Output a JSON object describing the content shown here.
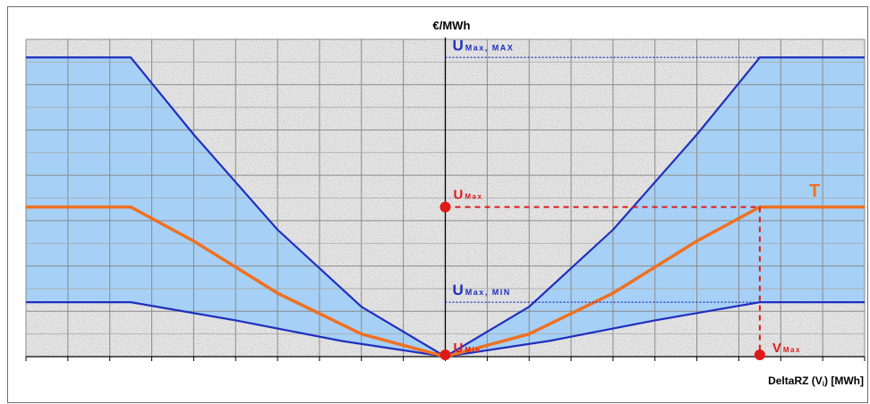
{
  "chart_data": {
    "type": "area",
    "ylabel": "€/MWh",
    "xlabel": "DeltaRZ (Vⁱ) [MWh]",
    "xlabel_parts": {
      "main": "DeltaRZ (V",
      "sub": "i",
      "tail": ") [MWh]"
    },
    "xlim": [
      -10,
      10
    ],
    "ylim": [
      0,
      7
    ],
    "x_ticks_count": 20,
    "y_ticks_count": 7,
    "series": [
      {
        "key": "upper",
        "color": "#1f2fbf",
        "points": [
          [
            -10,
            6.6
          ],
          [
            -7.5,
            6.6
          ],
          [
            -6,
            4.9
          ],
          [
            -4,
            2.8
          ],
          [
            -2,
            1.1
          ],
          [
            0,
            0
          ],
          [
            2,
            1.1
          ],
          [
            4,
            2.8
          ],
          [
            6,
            4.9
          ],
          [
            7.5,
            6.6
          ],
          [
            10,
            6.6
          ]
        ]
      },
      {
        "key": "lower",
        "color": "#1f2fbf",
        "points": [
          [
            -10,
            1.2
          ],
          [
            -7.5,
            1.2
          ],
          [
            -5,
            0.8
          ],
          [
            -2.5,
            0.35
          ],
          [
            0,
            0
          ],
          [
            2.5,
            0.35
          ],
          [
            5,
            0.8
          ],
          [
            7.5,
            1.2
          ],
          [
            10,
            1.2
          ]
        ]
      },
      {
        "name": "T",
        "key": "T",
        "color": "#f07020",
        "points": [
          [
            -10,
            3.3
          ],
          [
            -7.5,
            3.3
          ],
          [
            -6,
            2.55
          ],
          [
            -4,
            1.4
          ],
          [
            -2,
            0.5
          ],
          [
            0,
            0
          ],
          [
            2,
            0.5
          ],
          [
            4,
            1.4
          ],
          [
            6,
            2.55
          ],
          [
            7.5,
            3.3
          ],
          [
            10,
            3.3
          ]
        ]
      }
    ],
    "band_fill": "#a6d0f5",
    "annotations": [
      {
        "key": "umaxmax",
        "main": "U",
        "sub": "Max, MAX",
        "color": "#1f2fbf",
        "y": 6.6
      },
      {
        "key": "umax",
        "main": "U",
        "sub": "Max",
        "color": "#e01818",
        "y": 3.3
      },
      {
        "key": "umaxmin",
        "main": "U",
        "sub": "Max, MIN",
        "color": "#1f2fbf",
        "y": 1.2
      },
      {
        "key": "umin",
        "main": "U",
        "sub": "Min",
        "color": "#e01818",
        "y": 0
      },
      {
        "key": "vmax",
        "main": "V",
        "sub": "Max",
        "color": "#e01818",
        "x": 7.5
      }
    ],
    "series_label": "T",
    "grid": true
  }
}
